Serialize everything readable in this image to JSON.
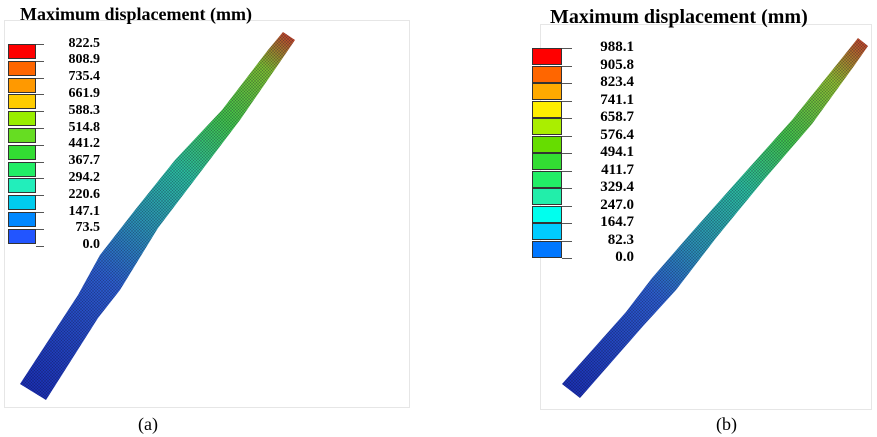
{
  "panels": [
    {
      "title": "Maximum displacement (mm)",
      "caption": "(a)",
      "legend": {
        "labels": [
          "822.5",
          "808.9",
          "735.4",
          "661.9",
          "588.3",
          "514.8",
          "441.2",
          "367.7",
          "294.2",
          "220.6",
          "147.1",
          "73.5",
          "0.0"
        ],
        "colors": [
          "#ff0000",
          "#ff6600",
          "#ff9900",
          "#ffcc00",
          "#99ee00",
          "#66dd22",
          "#33dd33",
          "#22ee66",
          "#22eebb",
          "#00ccee",
          "#0088ff",
          "#2255ff",
          "#0000ee"
        ]
      }
    },
    {
      "title": "Maximum displacement (mm)",
      "caption": "(b)",
      "legend": {
        "labels": [
          "988.1",
          "905.8",
          "823.4",
          "741.1",
          "658.7",
          "576.4",
          "494.1",
          "411.7",
          "329.4",
          "247.0",
          "164.7",
          "82.3",
          "0.0"
        ],
        "colors": [
          "#ff0000",
          "#ff6600",
          "#ffaa00",
          "#ffee00",
          "#aaee00",
          "#66dd00",
          "#33dd33",
          "#22ee66",
          "#22eeaa",
          "#00ffee",
          "#00ccff",
          "#0077ff",
          "#0022ee"
        ]
      }
    }
  ]
}
